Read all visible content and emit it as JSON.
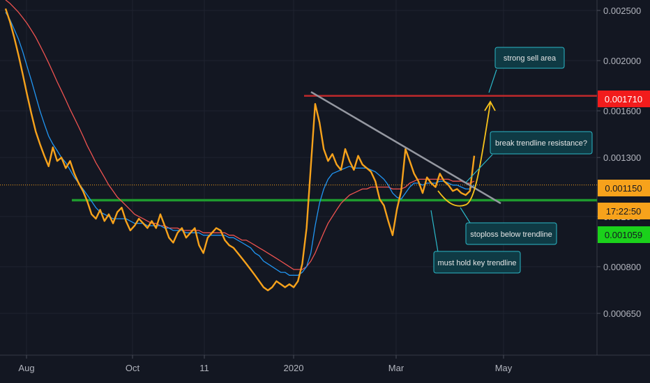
{
  "chart_data": {
    "type": "line",
    "title": "",
    "xlabel": "",
    "ylabel": "",
    "x_ticks": [
      "Aug",
      "Oct",
      "11",
      "2020",
      "Mar",
      "May"
    ],
    "y_ticks": [
      0.0025,
      0.002,
      0.0016,
      0.0013,
      0.001,
      0.0008,
      0.00065
    ],
    "y_tick_labels": [
      "0.002500",
      "0.002000",
      "0.001600",
      "0.001300",
      "0.001000",
      "0.000800",
      "0.000650"
    ],
    "log_scale": true,
    "grid": true,
    "series": [
      {
        "color": "#f7a21b",
        "values": [
          0.00252,
          0.00238,
          0.00222,
          0.00205,
          0.00188,
          0.00172,
          0.00158,
          0.00146,
          0.00138,
          0.00131,
          0.00125,
          0.00136,
          0.00128,
          0.0013,
          0.00124,
          0.00128,
          0.00121,
          0.00116,
          0.00112,
          0.00107,
          0.00101,
          0.00099,
          0.00103,
          0.00098,
          0.00101,
          0.00097,
          0.00102,
          0.00104,
          0.00098,
          0.00094,
          0.00096,
          0.00099,
          0.00097,
          0.00095,
          0.00098,
          0.00095,
          0.00101,
          0.00096,
          0.00091,
          0.00089,
          0.00093,
          0.00095,
          0.00091,
          0.00093,
          0.00095,
          0.00088,
          0.00085,
          0.00091,
          0.00093,
          0.00095,
          0.00094,
          0.0009,
          0.00088,
          0.00087,
          0.00085,
          0.00083,
          0.00081,
          0.00079,
          0.00077,
          0.00075,
          0.00073,
          0.00072,
          0.00073,
          0.00075,
          0.00074,
          0.00073,
          0.00074,
          0.00073,
          0.00075,
          0.00081,
          0.00095,
          0.00125,
          0.00165,
          0.00152,
          0.00135,
          0.00128,
          0.00132,
          0.00126,
          0.00123,
          0.00135,
          0.00128,
          0.00123,
          0.00131,
          0.00126,
          0.00124,
          0.00122,
          0.00117,
          0.00108,
          0.00105,
          0.00098,
          0.00092,
          0.00103,
          0.00112,
          0.00135,
          0.00128,
          0.00121,
          0.00117,
          0.00111,
          0.00119,
          0.00116,
          0.00114,
          0.00121,
          0.00117,
          0.00115,
          0.00112,
          0.00113,
          0.00111,
          0.0011,
          0.00112,
          0.00131
        ]
      },
      {
        "color": "#2196f3",
        "values": [
          0.00248,
          0.0024,
          0.0023,
          0.0022,
          0.00208,
          0.00195,
          0.00183,
          0.00171,
          0.0016,
          0.00151,
          0.00143,
          0.00138,
          0.00134,
          0.0013,
          0.00127,
          0.00123,
          0.00119,
          0.00116,
          0.00113,
          0.0011,
          0.00107,
          0.00104,
          0.00102,
          0.00101,
          0.001,
          0.00099,
          0.00099,
          0.00099,
          0.00099,
          0.00098,
          0.00097,
          0.00097,
          0.00097,
          0.00096,
          0.00096,
          0.00096,
          0.00096,
          0.00095,
          0.00095,
          0.00094,
          0.00094,
          0.00094,
          0.00093,
          0.00093,
          0.00093,
          0.00093,
          0.00092,
          0.00092,
          0.00092,
          0.00092,
          0.00092,
          0.00092,
          0.00091,
          0.00091,
          0.0009,
          0.00089,
          0.00088,
          0.00087,
          0.00085,
          0.00084,
          0.00082,
          0.00081,
          0.0008,
          0.00079,
          0.00078,
          0.00078,
          0.00077,
          0.00077,
          0.00077,
          0.00078,
          0.0008,
          0.00085,
          0.00096,
          0.00106,
          0.00113,
          0.00118,
          0.00121,
          0.00122,
          0.00123,
          0.00124,
          0.00125,
          0.00124,
          0.00124,
          0.00124,
          0.00124,
          0.00123,
          0.00122,
          0.0012,
          0.00118,
          0.00115,
          0.00111,
          0.00109,
          0.00108,
          0.00111,
          0.00114,
          0.00116,
          0.00116,
          0.00115,
          0.00116,
          0.00116,
          0.00116,
          0.00117,
          0.00117,
          0.00116,
          0.00115,
          0.00115,
          0.00114,
          0.00113,
          0.00113,
          0.00115
        ]
      },
      {
        "color": "#ef5350",
        "values": [
          0.00262,
          0.00258,
          0.00253,
          0.00248,
          0.00242,
          0.00236,
          0.00229,
          0.00222,
          0.00214,
          0.00206,
          0.00198,
          0.0019,
          0.00182,
          0.00175,
          0.00168,
          0.00161,
          0.00155,
          0.00149,
          0.00143,
          0.00137,
          0.00132,
          0.00127,
          0.00123,
          0.00119,
          0.00115,
          0.00112,
          0.00109,
          0.00107,
          0.00105,
          0.00103,
          0.00101,
          0.001,
          0.00099,
          0.00098,
          0.00097,
          0.00097,
          0.00096,
          0.00096,
          0.00095,
          0.00095,
          0.00095,
          0.00094,
          0.00094,
          0.00094,
          0.00094,
          0.00094,
          0.00093,
          0.00093,
          0.00093,
          0.00093,
          0.00093,
          0.00093,
          0.00092,
          0.00092,
          0.00091,
          0.0009,
          0.0009,
          0.00089,
          0.00088,
          0.00087,
          0.00086,
          0.00085,
          0.00084,
          0.00083,
          0.00082,
          0.00081,
          0.0008,
          0.00079,
          0.00079,
          0.00079,
          0.0008,
          0.00082,
          0.00085,
          0.00089,
          0.00093,
          0.00097,
          0.001,
          0.00103,
          0.00106,
          0.00108,
          0.0011,
          0.00111,
          0.00112,
          0.00113,
          0.00113,
          0.00114,
          0.00114,
          0.00114,
          0.00114,
          0.00114,
          0.00113,
          0.00113,
          0.00113,
          0.00114,
          0.00116,
          0.00117,
          0.00118,
          0.00118,
          0.00118,
          0.00118,
          0.00118,
          0.00118,
          0.00118,
          0.00118,
          0.00117,
          0.00117,
          0.00117,
          0.00116,
          0.00116,
          0.00117
        ]
      }
    ],
    "horizontal_levels": [
      {
        "value": 0.00171,
        "color": "#c0292b"
      },
      {
        "value": 0.001075,
        "color": "#1e9a2e"
      },
      {
        "value": 0.0011505,
        "color": "#f7a21b",
        "style": "dotted"
      }
    ],
    "trendline": {
      "color": "#9598a1",
      "from_value": 0.00174,
      "to_value": 0.00106
    },
    "price_tags": [
      {
        "label": "0.001710",
        "value": 0.00171,
        "bg": "#f21c1c",
        "fg": "#ffffff"
      },
      {
        "label": "0.001150",
        "value": 0.00115,
        "bg": "#f7a21b",
        "fg": "#131722"
      },
      {
        "label": "17:22:50",
        "value": 0.001095,
        "bg": "#f7a21b",
        "fg": "#131722"
      },
      {
        "label": "0.001059",
        "value": 0.001059,
        "bg": "#1bd11b",
        "fg": "#131722"
      }
    ],
    "annotations": [
      {
        "text": "strong sell area"
      },
      {
        "text": "break trendline resistance?"
      },
      {
        "text": "stoploss below trendline"
      },
      {
        "text": "must hold key trendline"
      }
    ]
  }
}
